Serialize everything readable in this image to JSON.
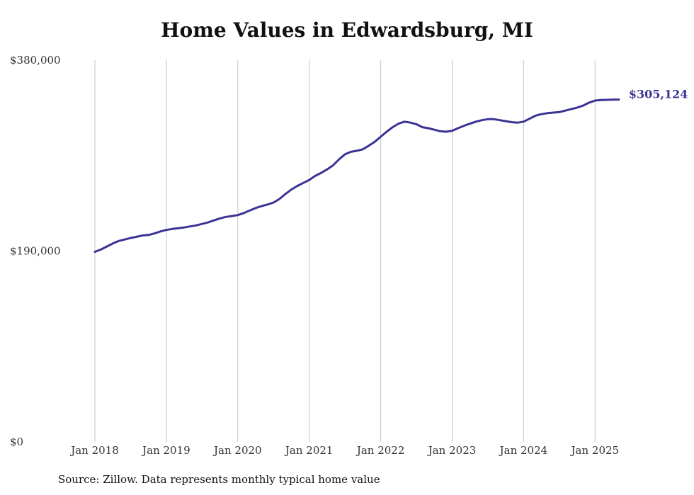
{
  "chart_data": {
    "type": "line",
    "title": "Home Values in Edwardsburg, MI",
    "source": "Source: Zillow. Data represents monthly typical home value",
    "xlabel": "",
    "ylabel": "",
    "ylim": [
      0,
      380000
    ],
    "y_ticks": [
      {
        "value": 0,
        "label": "$0"
      },
      {
        "value": 190000,
        "label": "$190,000"
      },
      {
        "value": 380000,
        "label": "$380,000"
      }
    ],
    "x_range": [
      2018.0,
      2025.333
    ],
    "x_ticks": [
      {
        "value": 2018,
        "label": "Jan 2018"
      },
      {
        "value": 2019,
        "label": "Jan 2019"
      },
      {
        "value": 2020,
        "label": "Jan 2020"
      },
      {
        "value": 2021,
        "label": "Jan 2021"
      },
      {
        "value": 2022,
        "label": "Jan 2022"
      },
      {
        "value": 2023,
        "label": "Jan 2023"
      },
      {
        "value": 2024,
        "label": "Jan 2024"
      },
      {
        "value": 2025,
        "label": "Jan 2025"
      }
    ],
    "grid": "vertical",
    "line_color": "#3b3494",
    "end_label": "$305,124",
    "series": [
      {
        "x": [
          2018.0,
          2018.083,
          2018.167,
          2018.25,
          2018.333,
          2018.417,
          2018.5,
          2018.583,
          2018.667,
          2018.75,
          2018.833,
          2018.917,
          2019.0,
          2019.083,
          2019.167,
          2019.25,
          2019.333,
          2019.417,
          2019.5,
          2019.583,
          2019.667,
          2019.75,
          2019.833,
          2019.917,
          2020.0,
          2020.083,
          2020.167,
          2020.25,
          2020.333,
          2020.417,
          2020.5,
          2020.583,
          2020.667,
          2020.75,
          2020.833,
          2020.917,
          2021.0,
          2021.083,
          2021.167,
          2021.25,
          2021.333,
          2021.417,
          2021.5,
          2021.583,
          2021.667,
          2021.75,
          2021.833,
          2021.917,
          2022.0,
          2022.083,
          2022.167,
          2022.25,
          2022.333,
          2022.417,
          2022.5,
          2022.583,
          2022.667,
          2022.75,
          2022.833,
          2022.917,
          2023.0,
          2023.083,
          2023.167,
          2023.25,
          2023.333,
          2023.417,
          2023.5,
          2023.583,
          2023.667,
          2023.75,
          2023.833,
          2023.917,
          2024.0,
          2024.083,
          2024.167,
          2024.25,
          2024.333,
          2024.417,
          2024.5,
          2024.583,
          2024.667,
          2024.75,
          2024.833,
          2024.917,
          2025.0,
          2025.083,
          2025.167,
          2025.25,
          2025.333
        ],
        "values": [
          189200,
          191500,
          194500,
          197500,
          200000,
          201500,
          203000,
          204200,
          205500,
          206000,
          207500,
          209500,
          211000,
          212000,
          212800,
          213500,
          214500,
          215500,
          217000,
          218500,
          220500,
          222500,
          224000,
          224800,
          225800,
          227800,
          230300,
          232800,
          234800,
          236300,
          238300,
          241800,
          246800,
          251300,
          254800,
          257800,
          260800,
          264800,
          267800,
          271300,
          275300,
          281300,
          286300,
          288800,
          289800,
          291300,
          294800,
          298800,
          303800,
          308800,
          313300,
          316800,
          318800,
          317800,
          316300,
          313300,
          312300,
          310800,
          309300,
          308800,
          309800,
          312300,
          314800,
          316800,
          318800,
          320300,
          321300,
          321300,
          320300,
          319300,
          318300,
          317800,
          318800,
          321800,
          324800,
          326300,
          327300,
          327800,
          328300,
          329800,
          331300,
          332800,
          334800,
          337800,
          339800,
          340300,
          340500,
          340800,
          305124
        ]
      }
    ]
  }
}
